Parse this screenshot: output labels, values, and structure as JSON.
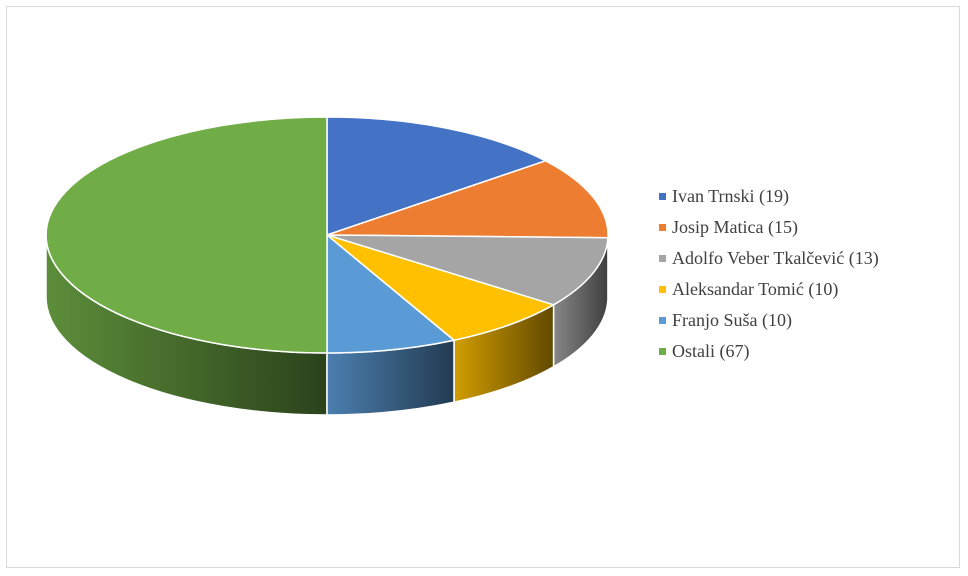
{
  "chart_data": {
    "type": "pie",
    "title": "",
    "style": "3d",
    "legend_position": "right",
    "series": [
      {
        "label": "Ivan Trnski (19)",
        "value": 19,
        "color": "#4472c4"
      },
      {
        "label": "Josip Matica (15)",
        "value": 15,
        "color": "#ed7d31"
      },
      {
        "label": "Adolfo Veber Tkalčević (13)",
        "value": 13,
        "color": "#a5a5a5"
      },
      {
        "label": "Aleksandar Tomić (10)",
        "value": 10,
        "color": "#ffc000"
      },
      {
        "label": "Franjo Suša (10)",
        "value": 10,
        "color": "#5b9bd5"
      },
      {
        "label": "Ostali (67)",
        "value": 67,
        "color": "#70ad47"
      }
    ]
  }
}
